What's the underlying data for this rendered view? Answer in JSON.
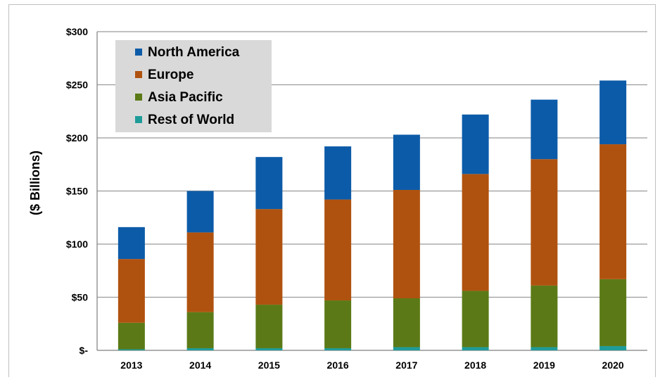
{
  "chart_data": {
    "type": "bar",
    "stacked": true,
    "title": "",
    "xlabel": "",
    "ylabel": "($ Billions)",
    "ylim": [
      0,
      300
    ],
    "yticks": [
      0,
      50,
      100,
      150,
      200,
      250,
      300
    ],
    "ytick_labels": [
      "$-",
      "$50",
      "$100",
      "$150",
      "$200",
      "$250",
      "$300"
    ],
    "grid": true,
    "legend_position": "top-left",
    "categories": [
      "2013",
      "2014",
      "2015",
      "2016",
      "2017",
      "2018",
      "2019",
      "2020"
    ],
    "series": [
      {
        "name": "Rest of World",
        "color": "#1e9c99",
        "values": [
          1,
          2,
          2,
          2,
          3,
          3,
          3,
          4
        ]
      },
      {
        "name": "Asia Pacific",
        "color": "#5b7a17",
        "values": [
          25,
          34,
          41,
          45,
          46,
          53,
          58,
          63
        ]
      },
      {
        "name": "Europe",
        "color": "#b0520f",
        "values": [
          60,
          75,
          90,
          95,
          102,
          110,
          119,
          127
        ]
      },
      {
        "name": "North America",
        "color": "#0c5ba8",
        "values": [
          30,
          39,
          49,
          50,
          52,
          56,
          56,
          60
        ]
      }
    ],
    "legend_order": [
      "North America",
      "Europe",
      "Asia Pacific",
      "Rest of World"
    ]
  }
}
